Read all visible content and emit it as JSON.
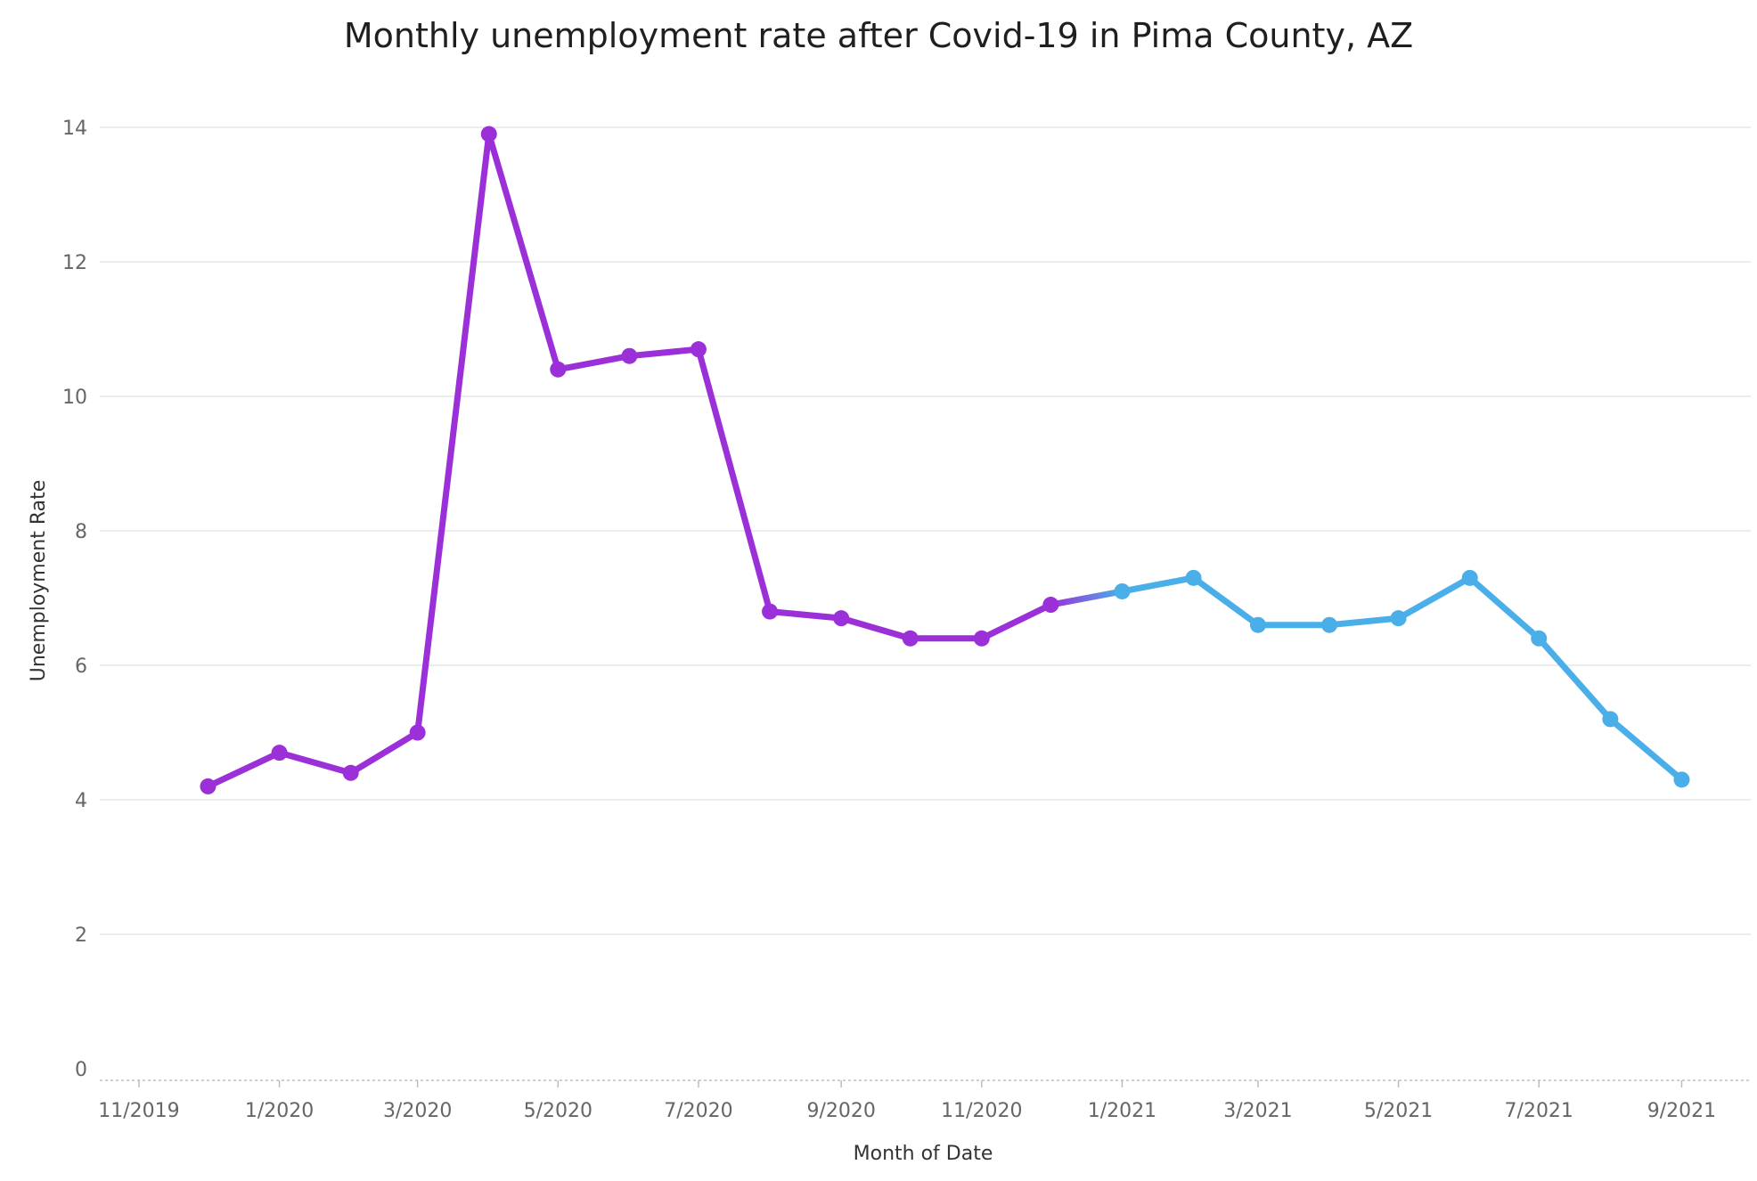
{
  "chart_data": {
    "type": "line",
    "title": "Monthly unemployment rate after Covid-19 in Pima County, AZ",
    "xlabel": "Month of Date",
    "ylabel": "Unemployment Rate",
    "ylim": [
      0,
      14
    ],
    "yticks": [
      "0",
      "2",
      "4",
      "6",
      "8",
      "10",
      "12",
      "14"
    ],
    "x_range": [
      "2019-10-15",
      "2021-10-01"
    ],
    "xticks": [
      {
        "date": "2019-11-01",
        "label": "11/2019"
      },
      {
        "date": "2020-01-01",
        "label": "1/2020"
      },
      {
        "date": "2020-03-01",
        "label": "3/2020"
      },
      {
        "date": "2020-05-01",
        "label": "5/2020"
      },
      {
        "date": "2020-07-01",
        "label": "7/2020"
      },
      {
        "date": "2020-09-01",
        "label": "9/2020"
      },
      {
        "date": "2020-11-01",
        "label": "11/2020"
      },
      {
        "date": "2021-01-01",
        "label": "1/2021"
      },
      {
        "date": "2021-03-01",
        "label": "3/2021"
      },
      {
        "date": "2021-05-01",
        "label": "5/2021"
      },
      {
        "date": "2021-07-01",
        "label": "7/2021"
      },
      {
        "date": "2021-09-01",
        "label": "9/2021"
      }
    ],
    "grid": true,
    "colors": {
      "first": "#9b30d9",
      "second": "#4aaee8"
    },
    "points": [
      {
        "x": "2019-12-01",
        "y": 4.2,
        "color": "first"
      },
      {
        "x": "2020-01-01",
        "y": 4.7,
        "color": "first"
      },
      {
        "x": "2020-02-01",
        "y": 4.4,
        "color": "first"
      },
      {
        "x": "2020-03-01",
        "y": 5.0,
        "color": "first"
      },
      {
        "x": "2020-04-01",
        "y": 13.9,
        "color": "first"
      },
      {
        "x": "2020-05-01",
        "y": 10.4,
        "color": "first"
      },
      {
        "x": "2020-06-01",
        "y": 10.6,
        "color": "first"
      },
      {
        "x": "2020-07-01",
        "y": 10.7,
        "color": "first"
      },
      {
        "x": "2020-08-01",
        "y": 6.8,
        "color": "first"
      },
      {
        "x": "2020-09-01",
        "y": 6.7,
        "color": "first"
      },
      {
        "x": "2020-10-01",
        "y": 6.4,
        "color": "first"
      },
      {
        "x": "2020-11-01",
        "y": 6.4,
        "color": "first"
      },
      {
        "x": "2020-12-01",
        "y": 6.9,
        "color": "first"
      },
      {
        "x": "2021-01-01",
        "y": 7.1,
        "color": "second"
      },
      {
        "x": "2021-02-01",
        "y": 7.3,
        "color": "second"
      },
      {
        "x": "2021-03-01",
        "y": 6.6,
        "color": "second"
      },
      {
        "x": "2021-04-01",
        "y": 6.6,
        "color": "second"
      },
      {
        "x": "2021-05-01",
        "y": 6.7,
        "color": "second"
      },
      {
        "x": "2021-06-01",
        "y": 7.3,
        "color": "second"
      },
      {
        "x": "2021-07-01",
        "y": 6.4,
        "color": "second"
      },
      {
        "x": "2021-08-01",
        "y": 5.2,
        "color": "second"
      },
      {
        "x": "2021-09-01",
        "y": 4.3,
        "color": "second"
      }
    ]
  }
}
